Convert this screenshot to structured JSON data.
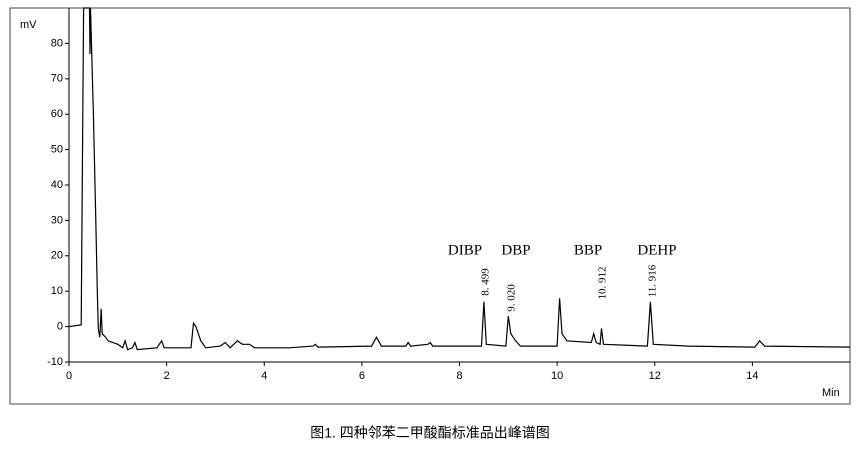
{
  "chart_data": {
    "type": "line",
    "y_label": "mV",
    "x_label": "Min",
    "caption": "图1. 四种邻苯二甲酸酯标准品出峰谱图",
    "annotations": [
      "DIBP",
      "DBP",
      "BBP",
      "DEHP"
    ],
    "peak_labels": [
      "8. 499",
      "9. 020",
      "10. 912",
      "11. 916"
    ],
    "xlim": [
      0,
      16
    ],
    "ylim": [
      -10,
      90
    ],
    "xticks": [
      0,
      2,
      4,
      6,
      8,
      10,
      12,
      14
    ],
    "yticks": [
      -10,
      0,
      10,
      20,
      30,
      40,
      50,
      60,
      70,
      80
    ],
    "color": "#000000",
    "x": [
      0,
      0.25,
      0.3,
      0.42,
      0.43,
      0.44,
      0.5,
      0.55,
      0.58,
      0.6,
      0.63,
      0.66,
      0.68,
      0.75,
      0.8,
      1.0,
      1.1,
      1.15,
      1.2,
      1.3,
      1.35,
      1.4,
      1.8,
      1.9,
      1.95,
      2.5,
      2.55,
      2.6,
      2.7,
      2.8,
      3.1,
      3.2,
      3.3,
      3.45,
      3.55,
      3.7,
      3.8,
      4.5,
      5.0,
      5.05,
      5.1,
      6.2,
      6.3,
      6.4,
      6.9,
      6.95,
      7.0,
      7.35,
      7.4,
      7.45,
      8.45,
      8.5,
      8.55,
      8.95,
      9.0,
      9.05,
      9.15,
      9.25,
      10.0,
      10.05,
      10.1,
      10.2,
      10.7,
      10.75,
      10.8,
      10.88,
      10.91,
      10.95,
      11.85,
      11.91,
      11.97,
      12.7,
      14.05,
      14.15,
      14.25,
      16
    ],
    "values": [
      0,
      0.5,
      90,
      90,
      77,
      90,
      60,
      30,
      10,
      -0.5,
      -3,
      5,
      -2,
      -3,
      -4,
      -5,
      -6,
      -4,
      -6.5,
      -6,
      -4.5,
      -6.5,
      -6,
      -4,
      -6,
      -6,
      1,
      0,
      -4,
      -6,
      -5.5,
      -4.5,
      -6,
      -4,
      -5,
      -5,
      -6,
      -6,
      -5.5,
      -5,
      -5.8,
      -5.5,
      -3,
      -5.5,
      -5.5,
      -4.5,
      -5.5,
      -5,
      -4.5,
      -5.5,
      -5.5,
      7,
      -5,
      -5.5,
      3,
      -2,
      -4,
      -5.5,
      -5.5,
      8,
      -2,
      -4,
      -4.5,
      -2,
      -4.5,
      -5,
      -0.5,
      -5,
      -5.5,
      7,
      -5,
      -5.5,
      -5.8,
      -4,
      -5.5,
      -5.8
    ]
  }
}
